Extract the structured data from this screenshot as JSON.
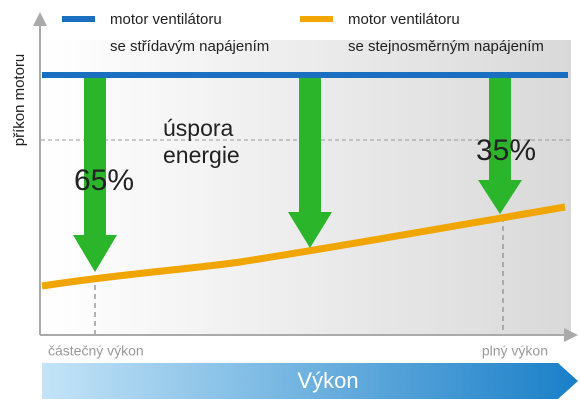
{
  "legend": [
    {
      "line1": "motor ventilátoru",
      "line2": "se střídavým napájením"
    },
    {
      "line1": "motor ventilátoru",
      "line2": "se stejnosměrným napájením"
    }
  ],
  "y_axis_label": "příkon motoru",
  "annotations": {
    "saving_line1": "úspora",
    "saving_line2": "energie",
    "left_percent": "65%",
    "right_percent": "35%"
  },
  "x_labels": {
    "left": "částečný výkon",
    "right": "plný výkon"
  },
  "x_axis_title": "Výkon"
}
